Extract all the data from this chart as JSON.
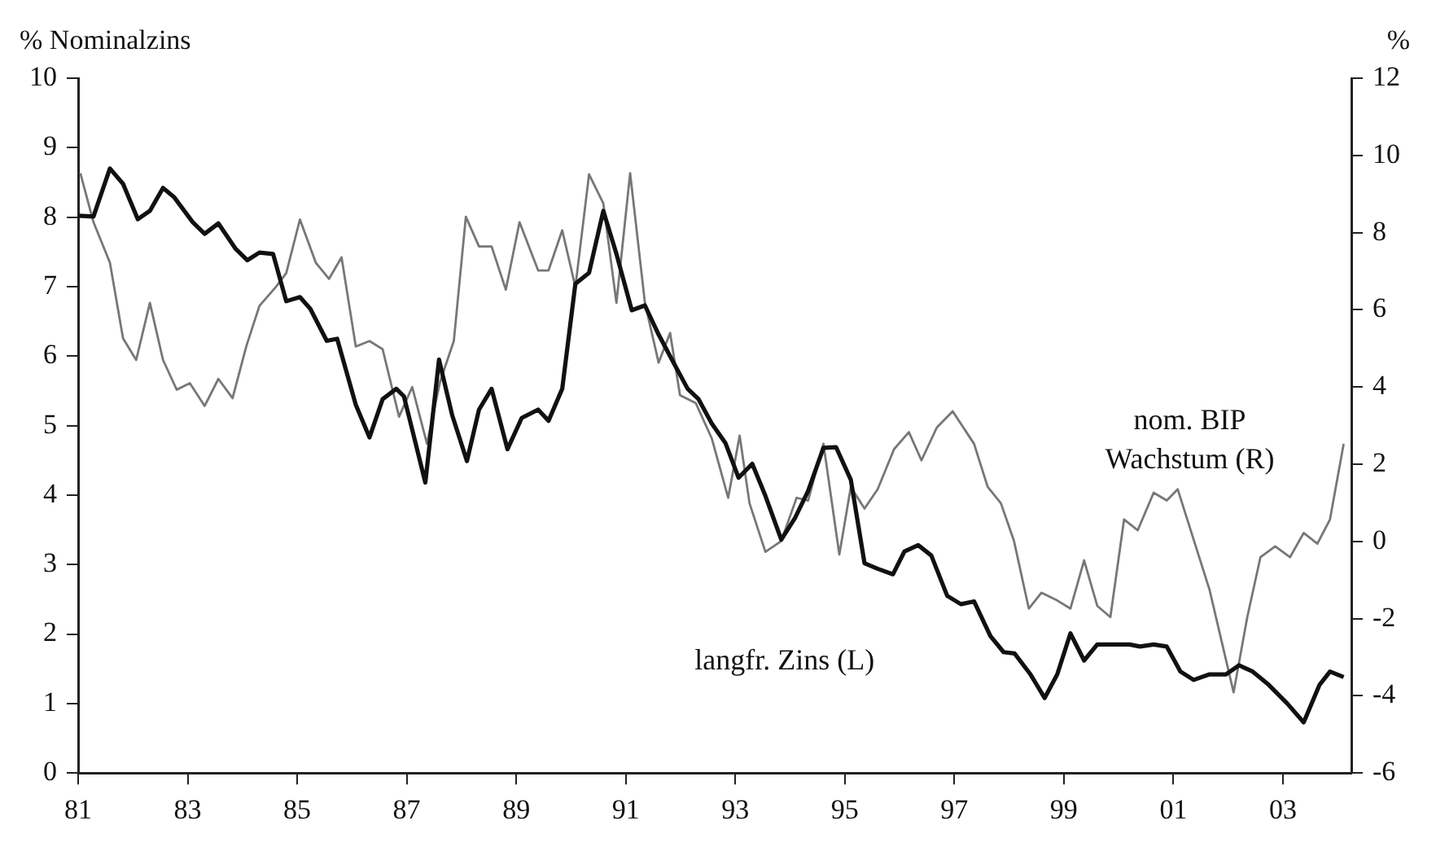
{
  "chart_data": {
    "type": "line",
    "ylabel": "% Nominalzins",
    "y2label": "%",
    "xlim": [
      1981,
      2004.25
    ],
    "xticks": [
      {
        "value": 1981,
        "label": "81"
      },
      {
        "value": 1983,
        "label": "83"
      },
      {
        "value": 1985,
        "label": "85"
      },
      {
        "value": 1987,
        "label": "87"
      },
      {
        "value": 1989,
        "label": "89"
      },
      {
        "value": 1991,
        "label": "91"
      },
      {
        "value": 1993,
        "label": "93"
      },
      {
        "value": 1995,
        "label": "95"
      },
      {
        "value": 1997,
        "label": "97"
      },
      {
        "value": 1999,
        "label": "99"
      },
      {
        "value": 2001,
        "label": "01"
      },
      {
        "value": 2003,
        "label": "03"
      }
    ],
    "ylim": [
      0,
      10
    ],
    "yticks": [
      0,
      1,
      2,
      3,
      4,
      5,
      6,
      7,
      8,
      9,
      10
    ],
    "y2lim": [
      -6,
      12
    ],
    "y2ticks": [
      -6,
      -4,
      -2,
      0,
      2,
      4,
      6,
      8,
      10,
      12
    ],
    "grid": false,
    "legend": false,
    "series": [
      {
        "name": "langfr. Zins (L)",
        "color": "#111111",
        "x": [
          1981.0,
          1981.28,
          1981.58,
          1981.82,
          1982.09,
          1982.31,
          1982.55,
          1982.75,
          1983.09,
          1983.31,
          1983.56,
          1983.87,
          1984.09,
          1984.31,
          1984.56,
          1984.8,
          1985.05,
          1985.24,
          1985.54,
          1985.73,
          1986.07,
          1986.32,
          1986.56,
          1986.81,
          1986.95,
          1987.34,
          1987.59,
          1987.83,
          1988.1,
          1988.32,
          1988.55,
          1988.84,
          1989.1,
          1989.4,
          1989.59,
          1989.84,
          1990.08,
          1990.33,
          1990.59,
          1990.83,
          1991.11,
          1991.35,
          1991.6,
          1991.89,
          1992.13,
          1992.33,
          1992.57,
          1992.82,
          1993.06,
          1993.31,
          1993.55,
          1993.84,
          1994.09,
          1994.33,
          1994.61,
          1994.84,
          1995.11,
          1995.36,
          1995.6,
          1995.88,
          1996.09,
          1996.34,
          1996.58,
          1996.87,
          1997.12,
          1997.36,
          1997.66,
          1997.9,
          1998.1,
          1998.39,
          1998.65,
          1998.88,
          1999.12,
          1999.37,
          1999.61,
          1999.91,
          2000.2,
          2000.39,
          2000.64,
          2000.88,
          2001.13,
          2001.37,
          2001.66,
          2001.96,
          2002.2,
          2002.45,
          2002.74,
          2003.08,
          2003.38,
          2003.67,
          2003.86,
          2004.11
        ],
        "values": [
          8.02,
          8.01,
          8.7,
          8.48,
          7.97,
          8.09,
          8.42,
          8.29,
          7.93,
          7.76,
          7.91,
          7.55,
          7.38,
          7.49,
          7.47,
          6.79,
          6.85,
          6.68,
          6.22,
          6.25,
          5.3,
          4.83,
          5.38,
          5.53,
          5.42,
          4.18,
          5.95,
          5.15,
          4.49,
          5.23,
          5.53,
          4.66,
          5.11,
          5.23,
          5.07,
          5.53,
          7.04,
          7.2,
          8.09,
          7.47,
          6.66,
          6.73,
          6.31,
          5.88,
          5.53,
          5.38,
          5.03,
          4.75,
          4.25,
          4.45,
          3.99,
          3.36,
          3.67,
          4.06,
          4.68,
          4.69,
          4.22,
          3.02,
          2.94,
          2.86,
          3.19,
          3.28,
          3.13,
          2.55,
          2.43,
          2.47,
          1.97,
          1.74,
          1.72,
          1.42,
          1.08,
          1.42,
          2.01,
          1.62,
          1.85,
          1.85,
          1.85,
          1.82,
          1.85,
          1.82,
          1.46,
          1.34,
          1.42,
          1.42,
          1.55,
          1.46,
          1.27,
          1.0,
          0.73,
          1.27,
          1.46,
          1.38
        ]
      },
      {
        "name": "nom. BIP Wachstum (R)",
        "color": "#777777",
        "axis": "y2",
        "x": [
          1981.04,
          1981.28,
          1981.58,
          1981.82,
          1982.06,
          1982.31,
          1982.55,
          1982.8,
          1983.04,
          1983.31,
          1983.56,
          1983.82,
          1984.07,
          1984.31,
          1984.61,
          1984.8,
          1985.05,
          1985.34,
          1985.58,
          1985.81,
          1986.07,
          1986.32,
          1986.56,
          1986.86,
          1987.1,
          1987.37,
          1987.61,
          1987.86,
          1988.08,
          1988.32,
          1988.55,
          1988.81,
          1989.06,
          1989.4,
          1989.59,
          1989.84,
          1990.08,
          1990.33,
          1990.59,
          1990.83,
          1991.08,
          1991.35,
          1991.6,
          1991.81,
          1991.99,
          1992.28,
          1992.57,
          1992.87,
          1993.08,
          1993.26,
          1993.55,
          1993.84,
          1994.12,
          1994.33,
          1994.61,
          1994.9,
          1995.11,
          1995.36,
          1995.6,
          1995.9,
          1996.17,
          1996.4,
          1996.68,
          1996.97,
          1997.36,
          1997.61,
          1997.85,
          1998.09,
          1998.36,
          1998.59,
          1998.88,
          1999.12,
          1999.37,
          1999.61,
          1999.85,
          2000.1,
          2000.35,
          2000.64,
          2000.88,
          2001.08,
          2001.66,
          2002.1,
          2002.35,
          2002.59,
          2002.86,
          2003.13,
          2003.38,
          2003.63,
          2003.86,
          2004.11
        ],
        "values": [
          9.54,
          8.27,
          7.22,
          5.26,
          4.7,
          6.18,
          4.7,
          3.93,
          4.1,
          3.51,
          4.21,
          3.71,
          5.05,
          6.1,
          6.59,
          6.95,
          8.34,
          7.22,
          6.8,
          7.36,
          5.05,
          5.19,
          4.98,
          3.23,
          4.0,
          2.53,
          4.14,
          5.19,
          8.41,
          7.64,
          7.64,
          6.52,
          8.27,
          7.02,
          7.02,
          8.06,
          6.59,
          9.51,
          8.76,
          6.18,
          9.54,
          6.18,
          4.63,
          5.4,
          3.79,
          3.58,
          2.67,
          1.13,
          2.74,
          0.99,
          -0.27,
          0.01,
          1.13,
          1.06,
          2.53,
          -0.34,
          1.41,
          0.85,
          1.35,
          2.39,
          2.83,
          2.1,
          2.95,
          3.37,
          2.53,
          1.41,
          0.99,
          0.01,
          -1.74,
          -1.33,
          -1.53,
          -1.74,
          -0.49,
          -1.67,
          -1.96,
          0.57,
          0.29,
          1.26,
          1.06,
          1.35,
          -1.25,
          -3.91,
          -1.96,
          -0.41,
          -0.13,
          -0.41,
          0.22,
          -0.06,
          0.57,
          2.53
        ]
      }
    ]
  }
}
